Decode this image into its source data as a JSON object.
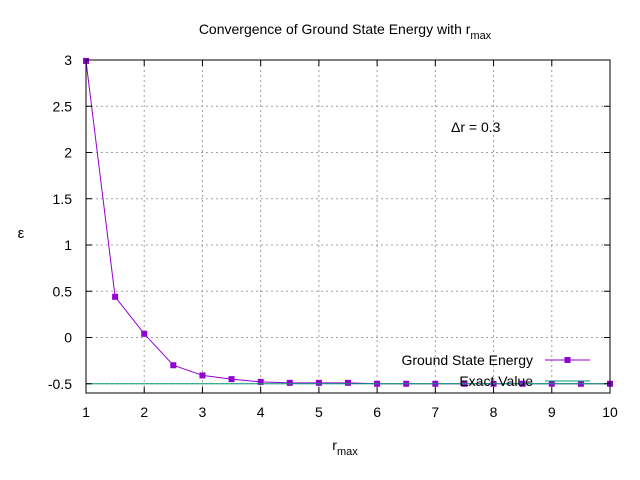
{
  "chart_data": {
    "type": "line",
    "title_main": "Convergence of Ground State Energy with r",
    "title_sub": "max",
    "xlabel_main": "r",
    "xlabel_sub": "max",
    "ylabel": "ε",
    "annotation": "Δr = 0.3",
    "xlim": [
      1,
      10
    ],
    "ylim": [
      -0.6,
      3
    ],
    "xticks": [
      1,
      2,
      3,
      4,
      5,
      6,
      7,
      8,
      9,
      10
    ],
    "yticks": [
      -0.5,
      0,
      0.5,
      1,
      1.5,
      2,
      2.5,
      3
    ],
    "grid": true,
    "legend_position": "bottom-right",
    "series": [
      {
        "name": "Ground State Energy",
        "color": "#9400d3",
        "marker": "square",
        "x": [
          1,
          1.5,
          2,
          2.5,
          3,
          3.5,
          4,
          4.5,
          5,
          5.5,
          6,
          6.5,
          7,
          7.5,
          8,
          8.5,
          9,
          9.5,
          10
        ],
        "y": [
          2.99,
          0.44,
          0.04,
          -0.3,
          -0.41,
          -0.45,
          -0.48,
          -0.49,
          -0.49,
          -0.49,
          -0.5,
          -0.5,
          -0.5,
          -0.5,
          -0.5,
          -0.5,
          -0.5,
          -0.5,
          -0.5
        ]
      },
      {
        "name": "Exact Value",
        "color": "#009e73",
        "marker": "none",
        "x": [
          1,
          10
        ],
        "y": [
          -0.5,
          -0.5
        ]
      }
    ]
  }
}
